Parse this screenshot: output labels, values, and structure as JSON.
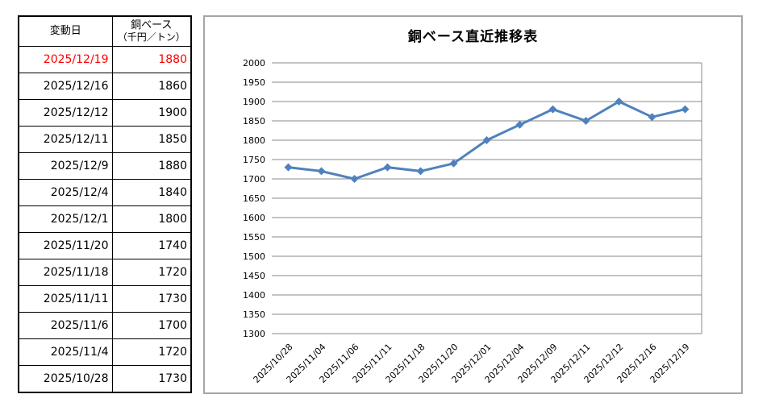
{
  "table": {
    "header": {
      "date_label": "変動日",
      "value_label_line1": "銅ベース",
      "value_label_line2": "（千円／トン）"
    },
    "highlight_color": "#FF0000",
    "rows": [
      {
        "date": "2025/12/19",
        "value": "1880",
        "highlight": true
      },
      {
        "date": "2025/12/16",
        "value": "1860"
      },
      {
        "date": "2025/12/12",
        "value": "1900"
      },
      {
        "date": "2025/12/11",
        "value": "1850"
      },
      {
        "date": "2025/12/9",
        "value": "1880"
      },
      {
        "date": "2025/12/4",
        "value": "1840"
      },
      {
        "date": "2025/12/1",
        "value": "1800"
      },
      {
        "date": "2025/11/20",
        "value": "1740"
      },
      {
        "date": "2025/11/18",
        "value": "1720"
      },
      {
        "date": "2025/11/11",
        "value": "1730"
      },
      {
        "date": "2025/11/6",
        "value": "1700"
      },
      {
        "date": "2025/11/4",
        "value": "1720"
      },
      {
        "date": "2025/10/28",
        "value": "1730"
      }
    ]
  },
  "chart_data": {
    "type": "line",
    "title": "銅ベース直近推移表",
    "categories": [
      "2025/10/28",
      "2025/11/04",
      "2025/11/06",
      "2025/11/11",
      "2025/11/18",
      "2025/11/20",
      "2025/12/01",
      "2025/12/04",
      "2025/12/09",
      "2025/12/11",
      "2025/12/12",
      "2025/12/16",
      "2025/12/19"
    ],
    "values": [
      1730,
      1720,
      1700,
      1730,
      1720,
      1740,
      1800,
      1840,
      1880,
      1850,
      1900,
      1860,
      1880
    ],
    "xlabel": "",
    "ylabel": "",
    "ylim": [
      1300,
      2000
    ],
    "yticks": [
      2000,
      1950,
      1900,
      1850,
      1800,
      1750,
      1700,
      1650,
      1600,
      1550,
      1500,
      1450,
      1400,
      1350,
      1300
    ],
    "grid": true,
    "legend": "none",
    "line_color": "#4F81BD",
    "marker": "diamond",
    "grid_color": "#898989",
    "chart_border_color": "#A6A6A6"
  }
}
